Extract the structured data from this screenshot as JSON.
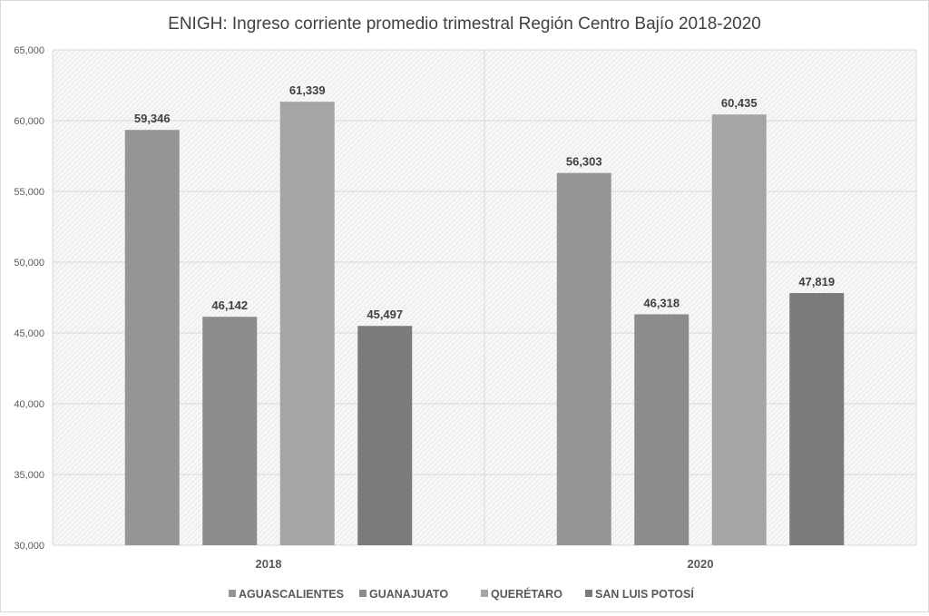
{
  "chart_data": {
    "type": "bar",
    "title": "ENIGH: Ingreso corriente promedio trimestral Región Centro Bajío 2018-2020",
    "xlabel": "",
    "ylabel": "",
    "categories": [
      "2018",
      "2020"
    ],
    "series": [
      {
        "name": "AGUASCALIENTES",
        "color": "#959595",
        "values": [
          59346,
          56303
        ],
        "labels": [
          "59,346",
          "56,303"
        ]
      },
      {
        "name": "GUANAJUATO",
        "color": "#8c8c8c",
        "values": [
          46142,
          46318
        ],
        "labels": [
          "46,142",
          "46,318"
        ]
      },
      {
        "name": "QUERÉTARO",
        "color": "#a5a5a5",
        "values": [
          61339,
          60435
        ],
        "labels": [
          "61,339",
          "60,435"
        ]
      },
      {
        "name": "SAN LUIS POTOSÍ",
        "color": "#7b7b7b",
        "values": [
          45497,
          47819
        ],
        "labels": [
          "45,497",
          "47,819"
        ]
      }
    ],
    "ylim": [
      30000,
      65000
    ],
    "yticks": [
      30000,
      35000,
      40000,
      45000,
      50000,
      55000,
      60000,
      65000
    ],
    "ytick_labels": [
      "30,000",
      "35,000",
      "40,000",
      "45,000",
      "50,000",
      "55,000",
      "60,000",
      "65,000"
    ],
    "grid": true,
    "legend": "bottom"
  }
}
